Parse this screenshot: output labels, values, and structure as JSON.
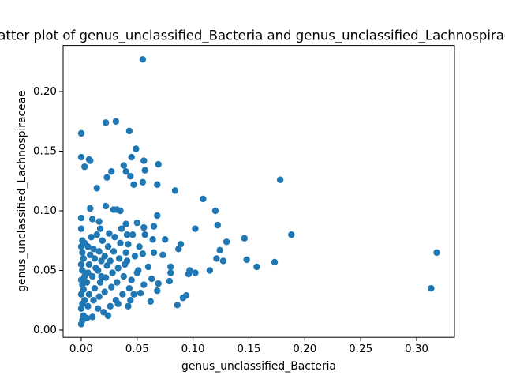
{
  "chart_data": {
    "type": "scatter",
    "title": "Scatter plot of genus_unclassified_Bacteria and genus_unclassified_Lachnospiraceae",
    "x_label": "genus_unclassified_Bacteria",
    "y_label": "genus_unclassified_Lachnospiraceae",
    "color": "#1f77b4",
    "xlim": [
      -0.0162,
      0.3339
    ],
    "ylim": [
      -0.0061,
      0.2387
    ],
    "xticks": [
      {
        "value": 0,
        "label": "0.00"
      },
      {
        "value": 0.05,
        "label": "0.05"
      },
      {
        "value": 0.1,
        "label": "0.10"
      },
      {
        "value": 0.15,
        "label": "0.15"
      },
      {
        "value": 0.2,
        "label": "0.20"
      },
      {
        "value": 0.25,
        "label": "0.25"
      },
      {
        "value": 0.3,
        "label": "0.30"
      }
    ],
    "yticks": [
      {
        "value": 0,
        "label": "0.00"
      },
      {
        "value": 0.05,
        "label": "0.05"
      },
      {
        "value": 0.1,
        "label": "0.10"
      },
      {
        "value": 0.15,
        "label": "0.15"
      },
      {
        "value": 0.2,
        "label": "0.20"
      }
    ],
    "grid": false,
    "x": [
      0.055,
      0.318,
      0.313,
      0.178,
      0.188,
      0.173,
      0.157,
      0.148,
      0.146,
      0.13,
      0.127,
      0.124,
      0.122,
      0.12,
      0.121,
      0.115,
      0.109,
      0.102,
      0.102,
      0.097,
      0.096,
      0.094,
      0.091,
      0.089,
      0.087,
      0.086,
      0.084,
      0.08,
      0.08,
      0.079,
      0.075,
      0.073,
      0.069,
      0.068,
      0.068,
      0.069,
      0.068,
      0.065,
      0.065,
      0.064,
      0.063,
      0.062,
      0.06,
      0.057,
      0.056,
      0.055,
      0.056,
      0.057,
      0.055,
      0.056,
      0.053,
      0.051,
      0.05,
      0.049,
      0.047,
      0.045,
      0.044,
      0.043,
      0.04,
      0.038,
      0.042,
      0.04,
      0.041,
      0.042,
      0.035,
      0.032,
      0.029,
      0.031,
      0.022,
      0.027,
      0.023,
      0.022,
      0.014,
      0.008,
      0.007,
      0.008,
      0.003,
      0.0,
      0.0,
      0.0,
      0.0,
      0.01,
      0.016,
      0.0,
      0.001,
      0.002,
      0.0,
      0.001,
      0.003,
      0.0,
      0.002,
      0.001,
      0.0,
      0.003,
      0.001,
      0.0,
      0.002,
      0.001,
      0.0,
      0.003,
      0.001,
      0.005,
      0.006,
      0.007,
      0.005,
      0.006,
      0.007,
      0.008,
      0.006,
      0.009,
      0.01,
      0.011,
      0.012,
      0.01,
      0.013,
      0.012,
      0.011,
      0.014,
      0.015,
      0.016,
      0.017,
      0.015,
      0.018,
      0.016,
      0.019,
      0.017,
      0.02,
      0.021,
      0.022,
      0.023,
      0.021,
      0.024,
      0.025,
      0.026,
      0.027,
      0.028,
      0.026,
      0.029,
      0.03,
      0.031,
      0.032,
      0.033,
      0.034,
      0.035,
      0.036,
      0.037,
      0.038,
      0.039,
      0.04,
      0.041,
      0.043,
      0.045,
      0.047,
      0.048,
      0.05,
      0.052,
      0.046,
      0.044,
      0.033,
      0.024,
      0.018
    ],
    "values": [
      0.227,
      0.065,
      0.035,
      0.126,
      0.08,
      0.057,
      0.053,
      0.059,
      0.077,
      0.074,
      0.058,
      0.067,
      0.088,
      0.1,
      0.06,
      0.05,
      0.11,
      0.085,
      0.048,
      0.05,
      0.047,
      0.029,
      0.027,
      0.072,
      0.068,
      0.021,
      0.117,
      0.053,
      0.048,
      0.041,
      0.076,
      0.063,
      0.139,
      0.122,
      0.096,
      0.039,
      0.033,
      0.065,
      0.087,
      0.076,
      0.043,
      0.024,
      0.053,
      0.134,
      0.142,
      0.124,
      0.086,
      0.08,
      0.064,
      0.038,
      0.031,
      0.05,
      0.09,
      0.152,
      0.122,
      0.145,
      0.129,
      0.167,
      0.133,
      0.138,
      0.072,
      0.089,
      0.058,
      0.02,
      0.1,
      0.101,
      0.101,
      0.175,
      0.174,
      0.133,
      0.128,
      0.104,
      0.119,
      0.102,
      0.143,
      0.142,
      0.137,
      0.165,
      0.145,
      0.094,
      0.085,
      0.093,
      0.091,
      0.005,
      0.008,
      0.012,
      0.018,
      0.022,
      0.025,
      0.03,
      0.034,
      0.038,
      0.042,
      0.045,
      0.05,
      0.055,
      0.06,
      0.065,
      0.07,
      0.073,
      0.075,
      0.01,
      0.02,
      0.03,
      0.04,
      0.048,
      0.055,
      0.063,
      0.07,
      0.078,
      0.011,
      0.025,
      0.035,
      0.045,
      0.052,
      0.06,
      0.068,
      0.08,
      0.018,
      0.028,
      0.04,
      0.05,
      0.058,
      0.066,
      0.075,
      0.085,
      0.015,
      0.032,
      0.044,
      0.054,
      0.062,
      0.07,
      0.081,
      0.02,
      0.036,
      0.048,
      0.058,
      0.066,
      0.078,
      0.025,
      0.04,
      0.052,
      0.06,
      0.073,
      0.085,
      0.03,
      0.045,
      0.055,
      0.065,
      0.08,
      0.035,
      0.042,
      0.03,
      0.062,
      0.048,
      0.07,
      0.08,
      0.025,
      0.022,
      0.012,
      0.045
    ]
  }
}
